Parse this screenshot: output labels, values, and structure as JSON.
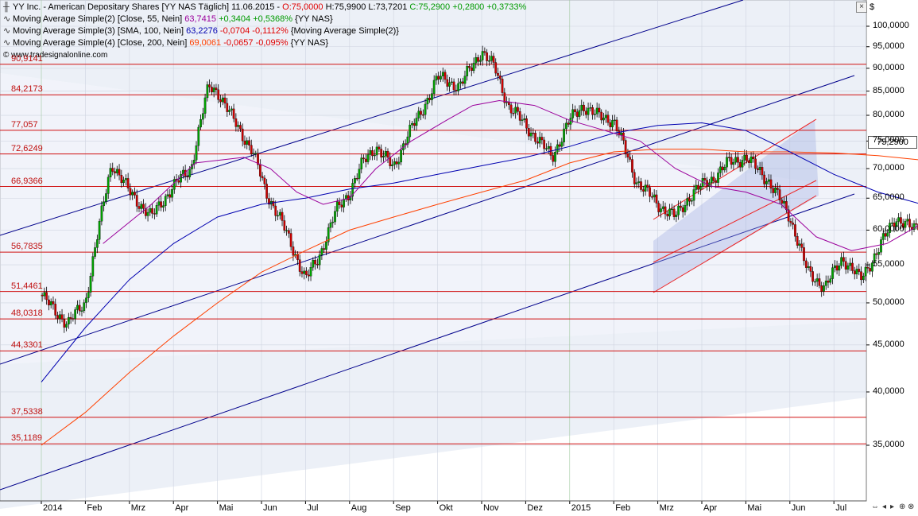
{
  "header": {
    "line1": {
      "name": "YY Inc. - American Depositary Shares [YY NAS  Täglich] 11.06.2015 - ",
      "o": "O:75,0000",
      "h": "H:75,9900",
      "l": "L:73,7201",
      "c": "C:75,2900",
      "chg": "+0,2800",
      "pct": "+0,3733%"
    },
    "ma55": {
      "label": "Moving Average Simple(2) [Close, 55, Nein]",
      "value": "63,7415",
      "chg": "+0,3404",
      "pct": "+0,5368%",
      "src": "{YY NAS}"
    },
    "ma100": {
      "label": "Moving Average Simple(3) [SMA, 100, Nein]",
      "value": "63,2276",
      "chg": "-0,0704",
      "pct": "-0,1112%",
      "src": "{Moving Average Simple(2)}"
    },
    "ma200": {
      "label": "Moving Average Simple(4) [Close, 200, Nein]",
      "value": "69,0061",
      "chg": "-0,0657",
      "pct": "-0,095%",
      "src": "{YY NAS}"
    },
    "watermark": "© www.tradesignalonline.com"
  },
  "currency_symbol": "$",
  "last_price": "75,2900",
  "colors": {
    "price_up": "#00a000",
    "price_down": "#cc0000",
    "ma55": "#9b009b",
    "ma100": "#0000b0",
    "ma200": "#ff4000",
    "levels": "#d01010",
    "channel": "#00008b",
    "grid": "#cfd4e0",
    "bg": "#ffffff",
    "band": "#dde3f1"
  },
  "chart_data": {
    "type": "candlestick",
    "x_labels": [
      "2014",
      "Feb",
      "Mrz",
      "Apr",
      "Mai",
      "Jun",
      "Jul",
      "Aug",
      "Sep",
      "Okt",
      "Nov",
      "Dez",
      "2015",
      "Feb",
      "Mrz",
      "Apr",
      "Mai",
      "Jun",
      "Jul"
    ],
    "y_ticks": [
      "35,0000",
      "40,0000",
      "45,0000",
      "50,0000",
      "55,0000",
      "60,0000",
      "65,0000",
      "70,0000",
      "75,0000",
      "80,0000",
      "85,0000",
      "90,0000",
      "95,0000",
      "100,0000"
    ],
    "y_scale": "log",
    "y_range": [
      30.5,
      104
    ],
    "horizontal_levels": [
      "90,9141",
      "84,2173",
      "77,057",
      "72,6249",
      "66,9366",
      "56,7835",
      "51,4461",
      "48,0318",
      "44,3301",
      "37,5338",
      "35,1189"
    ],
    "price_path": [
      [
        0,
        51
      ],
      [
        0.3,
        49
      ],
      [
        0.6,
        47.5
      ],
      [
        1,
        50
      ],
      [
        1.3,
        60
      ],
      [
        1.6,
        71
      ],
      [
        2,
        66
      ],
      [
        2.5,
        62
      ],
      [
        3,
        67
      ],
      [
        3.4,
        70
      ],
      [
        3.8,
        86
      ],
      [
        4,
        85
      ],
      [
        4.3,
        80
      ],
      [
        4.8,
        73
      ],
      [
        5.1,
        66
      ],
      [
        5.4,
        62
      ],
      [
        5.8,
        56
      ],
      [
        6,
        53
      ],
      [
        6.3,
        56
      ],
      [
        6.7,
        63
      ],
      [
        7,
        66
      ],
      [
        7.3,
        71
      ],
      [
        7.6,
        74
      ],
      [
        8,
        70
      ],
      [
        8.3,
        76
      ],
      [
        8.6,
        80
      ],
      [
        9,
        88
      ],
      [
        9.5,
        86
      ],
      [
        10,
        94
      ],
      [
        10.3,
        90
      ],
      [
        10.6,
        82
      ],
      [
        11,
        78
      ],
      [
        11.3,
        75
      ],
      [
        11.6,
        72
      ],
      [
        12,
        79
      ],
      [
        12.3,
        82
      ],
      [
        12.6,
        80
      ],
      [
        13,
        79
      ],
      [
        13.5,
        68
      ],
      [
        14,
        64
      ],
      [
        14.4,
        62
      ],
      [
        14.8,
        66
      ],
      [
        15.2,
        68
      ],
      [
        15.6,
        71
      ],
      [
        16,
        72
      ],
      [
        16.5,
        68
      ],
      [
        17,
        62
      ],
      [
        17.4,
        54
      ],
      [
        17.8,
        52
      ],
      [
        18.2,
        56
      ],
      [
        18.6,
        53
      ],
      [
        19,
        57
      ],
      [
        19.4,
        62
      ],
      [
        19.8,
        60
      ],
      [
        20.2,
        63
      ],
      [
        20.6,
        68
      ],
      [
        21,
        65
      ],
      [
        21.4,
        62
      ],
      [
        21.8,
        66
      ],
      [
        22.2,
        68
      ],
      [
        22.6,
        71
      ],
      [
        22.9,
        75.3
      ]
    ],
    "ma55": [
      [
        1.4,
        58
      ],
      [
        2.5,
        64
      ],
      [
        3.5,
        71
      ],
      [
        4.6,
        72
      ],
      [
        5.2,
        70
      ],
      [
        5.8,
        66
      ],
      [
        6.4,
        64
      ],
      [
        7,
        65
      ],
      [
        7.6,
        70
      ],
      [
        8.4,
        75
      ],
      [
        9.2,
        79
      ],
      [
        9.8,
        82
      ],
      [
        10.4,
        83
      ],
      [
        11.2,
        82
      ],
      [
        12,
        79
      ],
      [
        12.8,
        77
      ],
      [
        13.6,
        75
      ],
      [
        14.4,
        70
      ],
      [
        15.2,
        67
      ],
      [
        16,
        66
      ],
      [
        16.8,
        64
      ],
      [
        17.6,
        59
      ],
      [
        18.4,
        57
      ],
      [
        19.2,
        58
      ],
      [
        20,
        61
      ],
      [
        20.8,
        63
      ],
      [
        21.6,
        63
      ],
      [
        22.4,
        63
      ],
      [
        22.9,
        63.7
      ]
    ],
    "ma100": [
      [
        0,
        41
      ],
      [
        1,
        47
      ],
      [
        2,
        53
      ],
      [
        3,
        58
      ],
      [
        4,
        62
      ],
      [
        5,
        64
      ],
      [
        6,
        65
      ],
      [
        7,
        66.5
      ],
      [
        8,
        67.5
      ],
      [
        9,
        69
      ],
      [
        10,
        70.5
      ],
      [
        11,
        72
      ],
      [
        12,
        74
      ],
      [
        13,
        76.5
      ],
      [
        14,
        78
      ],
      [
        15,
        78.5
      ],
      [
        16,
        77
      ],
      [
        17,
        73
      ],
      [
        18,
        69
      ],
      [
        19,
        66
      ],
      [
        20,
        64
      ],
      [
        21,
        63.5
      ],
      [
        22,
        63.3
      ],
      [
        22.9,
        63.2
      ]
    ],
    "ma200": [
      [
        0,
        35
      ],
      [
        1,
        38
      ],
      [
        2,
        42
      ],
      [
        3,
        46
      ],
      [
        4,
        50
      ],
      [
        5,
        54
      ],
      [
        6,
        57
      ],
      [
        7,
        60
      ],
      [
        8,
        62
      ],
      [
        9,
        64
      ],
      [
        10,
        66
      ],
      [
        11,
        68
      ],
      [
        12,
        71
      ],
      [
        13,
        73
      ],
      [
        14,
        73.5
      ],
      [
        15,
        73.5
      ],
      [
        16,
        73
      ],
      [
        17,
        73
      ],
      [
        18,
        72.8
      ],
      [
        19,
        72.3
      ],
      [
        20,
        71.5
      ],
      [
        21,
        70.5
      ],
      [
        22,
        69.5
      ],
      [
        22.9,
        69
      ]
    ]
  }
}
